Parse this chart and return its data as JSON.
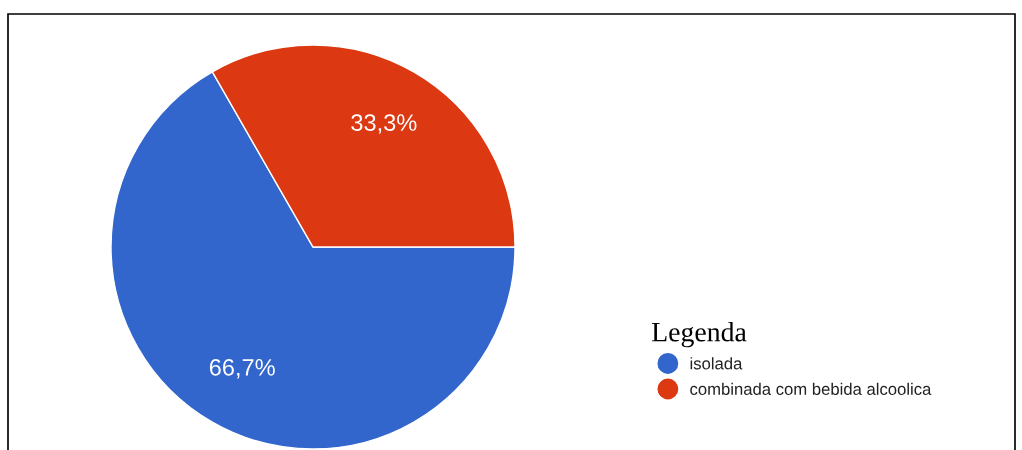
{
  "chart_data": {
    "type": "pie",
    "categories": [
      "isolada",
      "combinada com bebida alcoolica"
    ],
    "values": [
      66.7,
      33.3
    ],
    "colors": [
      "#3366cc",
      "#dc3912"
    ],
    "value_labels": [
      "66,7%",
      "33,3%"
    ],
    "legend_title": "Legenda",
    "legend": "right"
  }
}
